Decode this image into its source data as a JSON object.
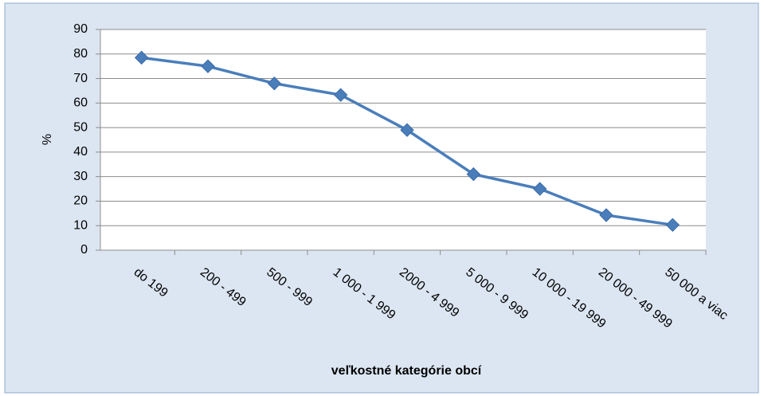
{
  "chart_data": {
    "type": "line",
    "x_label": "veľkostné kategórie obcí",
    "y_label": "%",
    "categories": [
      "do 199",
      "200 - 499",
      "500 - 999",
      "1 000 - 1 999",
      "2000 - 4 999",
      "5 000 - 9 999",
      "10 000 - 19 999",
      "20 000 - 49 999",
      "50 000 a viac"
    ],
    "series": [
      {
        "color": "#4a7ebb",
        "values": [
          78.5,
          75,
          68,
          63.3,
          49,
          31,
          25,
          14.3,
          10.3
        ]
      }
    ],
    "ylim": [
      0,
      90
    ],
    "yticks": [
      0,
      10,
      20,
      30,
      40,
      50,
      60,
      70,
      80,
      90
    ],
    "grid": true
  }
}
